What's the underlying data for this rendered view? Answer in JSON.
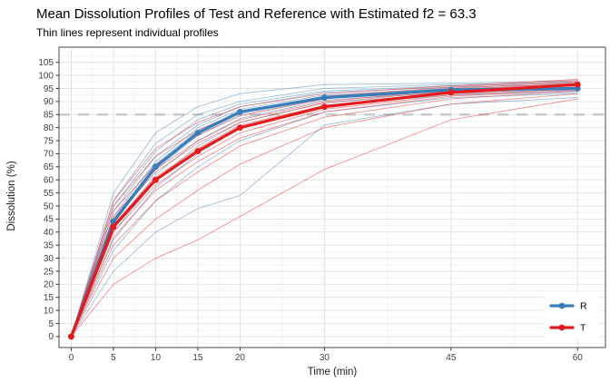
{
  "header": {
    "title": "Mean Dissolution Profiles of Test and Reference with Estimated f2 = 63.3",
    "subtitle": "Thin lines represent individual profiles"
  },
  "colors": {
    "reference": "#377EB8",
    "test": "#E41A1C",
    "reference_threshold_line": "#C9C9C9",
    "grid_major": "#E3E3E3",
    "grid_minor": "#F0F0F0",
    "panel_border": "#4A4A4A",
    "tick_mark": "#333333",
    "tick_label": "#404040"
  },
  "chart_data": {
    "type": "line",
    "title": "Mean Dissolution Profiles of Test and Reference with Estimated f2 = 63.3",
    "subtitle": "Thin lines represent individual profiles",
    "f2_value": 63.3,
    "xlabel": "Time (min)",
    "ylabel": "Dissolution (%)",
    "x": [
      0,
      5,
      10,
      15,
      20,
      30,
      45,
      60
    ],
    "x_ticks": [
      0,
      5,
      10,
      15,
      20,
      30,
      45,
      60
    ],
    "y_ticks": [
      0,
      5,
      10,
      15,
      20,
      25,
      30,
      35,
      40,
      45,
      50,
      55,
      60,
      65,
      70,
      75,
      80,
      85,
      90,
      95,
      100,
      105
    ],
    "xlim": [
      -1.45,
      63.3
    ],
    "ylim": [
      -4.2,
      110.8
    ],
    "grid": true,
    "reference_line": {
      "y": 85,
      "style": "dashed"
    },
    "series": [
      {
        "name": "R",
        "role": "mean",
        "color_key": "reference",
        "values": [
          0,
          44,
          65,
          78,
          86,
          91.5,
          94.5,
          95
        ]
      },
      {
        "name": "T",
        "role": "mean",
        "color_key": "test",
        "values": [
          0,
          42,
          60,
          71,
          80,
          88,
          93.5,
          96.5
        ]
      }
    ],
    "individual_profiles": {
      "R": [
        [
          0,
          55,
          78,
          88,
          93,
          96.5,
          97,
          98
        ],
        [
          0,
          52,
          74,
          85,
          90,
          95,
          96.5,
          97.5
        ],
        [
          0,
          50,
          71,
          83,
          89,
          94,
          96,
          97
        ],
        [
          0,
          48,
          69,
          81,
          88,
          93.5,
          95.5,
          96.5
        ],
        [
          0,
          46,
          67,
          80,
          87,
          92.5,
          95,
          96
        ],
        [
          0,
          45,
          66,
          79,
          86,
          92,
          94.5,
          95.5
        ],
        [
          0,
          44,
          64,
          77,
          85,
          91,
          94,
          95
        ],
        [
          0,
          42,
          62,
          75,
          83.5,
          90.5,
          93.5,
          94.5
        ],
        [
          0,
          40,
          60,
          73,
          82,
          89.5,
          93,
          94
        ],
        [
          0,
          37,
          57,
          70,
          80,
          88.5,
          92.5,
          93.5
        ],
        [
          0,
          33,
          52,
          65,
          75,
          86,
          91.5,
          93
        ],
        [
          0,
          25,
          40,
          49,
          54,
          81,
          89,
          91.5
        ]
      ],
      "T": [
        [
          0,
          52,
          72,
          82,
          88,
          93,
          96,
          98.5
        ],
        [
          0,
          50,
          69,
          79,
          86,
          92,
          95.5,
          98
        ],
        [
          0,
          48,
          66,
          77,
          84.5,
          91,
          95,
          97.5
        ],
        [
          0,
          46,
          64,
          75,
          83,
          90,
          94.5,
          97
        ],
        [
          0,
          45,
          63,
          74,
          82,
          89.5,
          94,
          96.5
        ],
        [
          0,
          43,
          61,
          72,
          81,
          88.5,
          93.5,
          96
        ],
        [
          0,
          42,
          60,
          71,
          80,
          88,
          93,
          95.5
        ],
        [
          0,
          40,
          58,
          69,
          78,
          87,
          92.5,
          95
        ],
        [
          0,
          38,
          56,
          67,
          76,
          86,
          92,
          94.5
        ],
        [
          0,
          35,
          52,
          63,
          73,
          84,
          91,
          94
        ],
        [
          0,
          30,
          45,
          56,
          66,
          80,
          89,
          93
        ],
        [
          0,
          20,
          30,
          37,
          46,
          64,
          83,
          91
        ]
      ]
    },
    "legend": {
      "position": "bottom-right",
      "entries": [
        {
          "label": "R",
          "color_key": "reference"
        },
        {
          "label": "T",
          "color_key": "test"
        }
      ]
    }
  }
}
